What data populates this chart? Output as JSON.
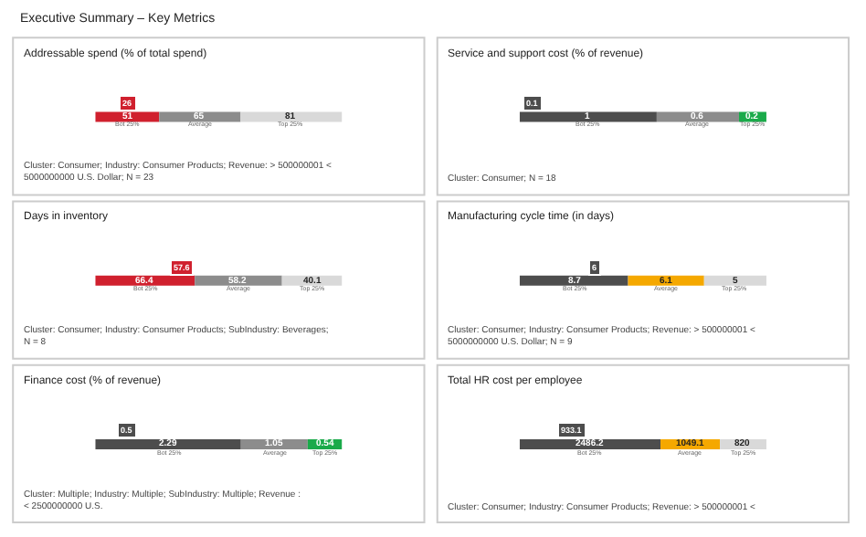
{
  "chart_data": [
    {
      "type": "other",
      "title": "Executive Summary – Key Metrics"
    },
    {
      "type": "bar",
      "orientation": "horizontal",
      "stacked": true,
      "data_labels": true,
      "tick_labels": false,
      "title": "Addressable spend (% of total spend)",
      "categories": [
        null
      ],
      "series": [
        {
          "name": "Bot 25%",
          "color": "#d0202e",
          "values": [
            51
          ]
        },
        {
          "name": "Average",
          "color": "#8c8c8c",
          "values": [
            65
          ]
        },
        {
          "name": "Top 25%",
          "color": "#d9d9d9",
          "values": [
            81
          ]
        }
      ],
      "annotations": [
        {
          "text": "26",
          "x": 26
        },
        "Cluster: Consumer; Industry: Consumer Products; Revenue: > 500000001 < 5000000000 U.S. Dollar; N = 23"
      ]
    },
    {
      "type": "bar",
      "orientation": "horizontal",
      "stacked": true,
      "data_labels": true,
      "tick_labels": false,
      "title": "Service and support cost (% of revenue)",
      "categories": [
        null
      ],
      "series": [
        {
          "name": "Bot 25%",
          "color": "#4d4d4d",
          "values": [
            1
          ]
        },
        {
          "name": "Average",
          "color": "#8c8c8c",
          "values": [
            0.6
          ]
        },
        {
          "name": "Top 25%",
          "color": "#1aaa4a",
          "values": [
            0.2
          ]
        }
      ],
      "annotations": [
        {
          "text": "0.1",
          "x": 0.1
        },
        "Cluster: Consumer; N = 18"
      ]
    },
    {
      "type": "bar",
      "orientation": "horizontal",
      "stacked": true,
      "data_labels": true,
      "tick_labels": false,
      "title": "Days in inventory",
      "categories": [
        null
      ],
      "series": [
        {
          "name": "Bot 25%",
          "color": "#d0202e",
          "values": [
            66.4
          ]
        },
        {
          "name": "Average",
          "color": "#8c8c8c",
          "values": [
            58.2
          ]
        },
        {
          "name": "Top 25%",
          "color": "#d9d9d9",
          "values": [
            40.1
          ]
        }
      ],
      "annotations": [
        {
          "text": "57.6",
          "x": 57.6
        },
        "Cluster: Consumer; Industry: Consumer Products; SubIndustry: Beverages; N = 8"
      ]
    },
    {
      "type": "bar",
      "orientation": "horizontal",
      "stacked": true,
      "data_labels": true,
      "tick_labels": false,
      "title": "Manufacturing cycle time (in days)",
      "categories": [
        null
      ],
      "series": [
        {
          "name": "Bot 25%",
          "color": "#4d4d4d",
          "values": [
            8.7
          ]
        },
        {
          "name": "Average",
          "color": "#f5a800",
          "values": [
            6.1
          ]
        },
        {
          "name": "Top 25%",
          "color": "#d9d9d9",
          "values": [
            5
          ]
        }
      ],
      "annotations": [
        {
          "text": "6",
          "x": 6
        },
        "Cluster: Consumer; Industry: Consumer Products; Revenue: > 500000001 < 5000000000 U.S. Dollar; N = 9"
      ]
    },
    {
      "type": "bar",
      "orientation": "horizontal",
      "stacked": true,
      "data_labels": true,
      "tick_labels": false,
      "title": "Finance cost (% of revenue)",
      "categories": [
        null
      ],
      "series": [
        {
          "name": "Bot 25%",
          "color": "#4d4d4d",
          "values": [
            2.29
          ]
        },
        {
          "name": "Average",
          "color": "#8c8c8c",
          "values": [
            1.05
          ]
        },
        {
          "name": "Top 25%",
          "color": "#1aaa4a",
          "values": [
            0.54
          ]
        }
      ],
      "annotations": [
        {
          "text": "0.5",
          "x": 0.5
        },
        "Cluster: Multiple; Industry: Multiple; SubIndustry: Multiple; Revenue : < 2500000000 U.S."
      ]
    },
    {
      "type": "bar",
      "orientation": "horizontal",
      "stacked": true,
      "data_labels": true,
      "tick_labels": false,
      "title": "Total HR cost per employee",
      "categories": [
        null
      ],
      "series": [
        {
          "name": "Bot 25%",
          "color": "#4d4d4d",
          "values": [
            2486.2
          ]
        },
        {
          "name": "Average",
          "color": "#f5a800",
          "values": [
            1049.1
          ]
        },
        {
          "name": "Top 25%",
          "color": "#d9d9d9",
          "values": [
            820
          ]
        }
      ],
      "annotations": [
        {
          "text": "933.1",
          "x": 933.1
        },
        "Cluster: Consumer; Industry: Consumer Products; Revenue: > 500000001 <"
      ]
    }
  ]
}
